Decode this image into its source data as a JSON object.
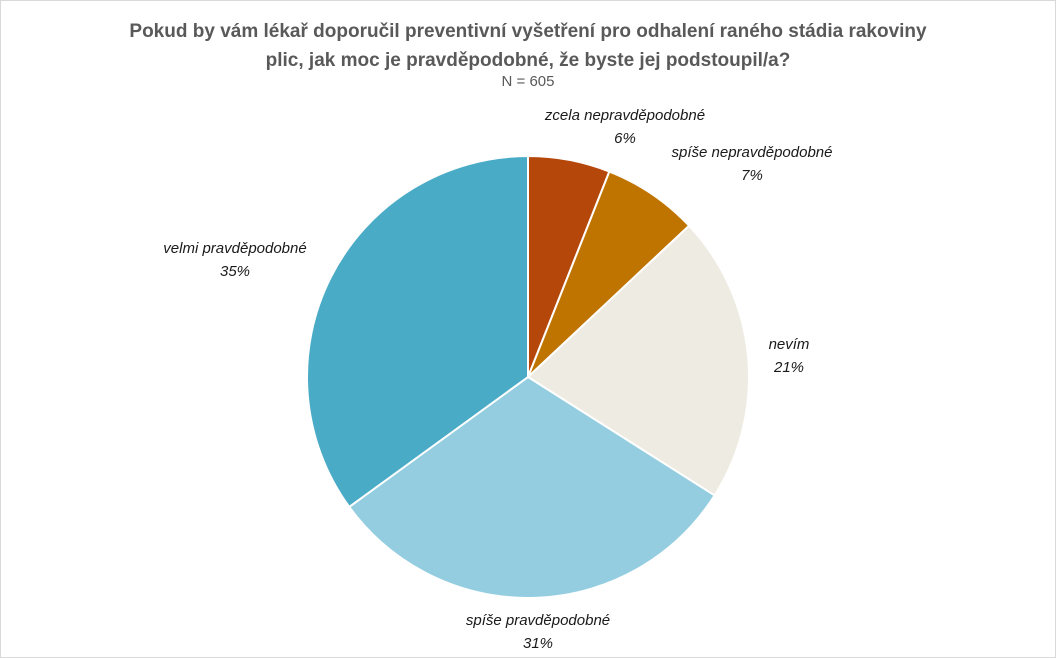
{
  "chart_data": {
    "type": "pie",
    "title_lines": [
      "Pokud by vám lékař doporučil preventivní vyšetření pro odhalení raného stádia rakoviny",
      "plic, jak moc je pravděpodobné, že byste jej podstoupil/a?"
    ],
    "subtitle": "N = 605",
    "slices": [
      {
        "name": "zcela nepravděpodobné",
        "value": 6,
        "label": "6%",
        "color": "#b5470b"
      },
      {
        "name": "spíše nepravděpodobné",
        "value": 7,
        "label": "7%",
        "color": "#c07400"
      },
      {
        "name": "nevím",
        "value": 21,
        "label": "21%",
        "color": "#eeebe2"
      },
      {
        "name": "spíše pravděpodobné",
        "value": 31,
        "label": "31%",
        "color": "#93cddf"
      },
      {
        "name": "velmi pravděpodobné",
        "value": 35,
        "label": "35%",
        "color": "#4aabc6"
      }
    ],
    "start_angle": "12 o'clock",
    "direction": "clockwise",
    "legend": "none",
    "data_labels": "outside"
  }
}
